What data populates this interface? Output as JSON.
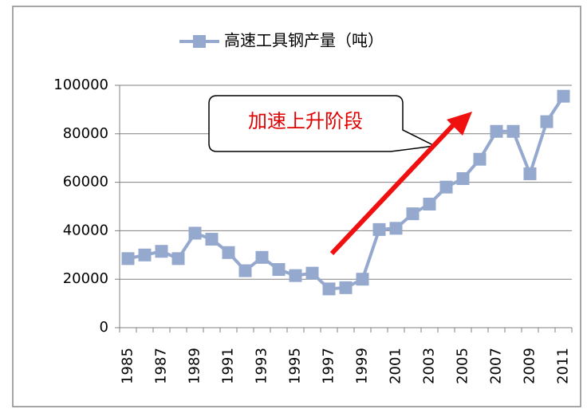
{
  "chart_data": {
    "type": "line",
    "categories": [
      "1985",
      null,
      "1987",
      null,
      "1989",
      null,
      "1991",
      null,
      "1993",
      null,
      "1995",
      null,
      "1997",
      null,
      "1999",
      null,
      "2001",
      null,
      "2003",
      null,
      "2005",
      null,
      "2007",
      null,
      "2009",
      null,
      "2011"
    ],
    "series": [
      {
        "name": "高速工具钢产量（吨）",
        "color": "#95a8cd",
        "values": [
          28500,
          30000,
          31500,
          28500,
          39000,
          36500,
          31000,
          23500,
          29000,
          24000,
          21500,
          22500,
          16000,
          16500,
          20000,
          40500,
          41000,
          47000,
          51000,
          58000,
          61500,
          69500,
          81000,
          81000,
          63500,
          85000,
          95500
        ]
      }
    ],
    "ylim": [
      0,
      100000
    ],
    "yticks": [
      0,
      20000,
      40000,
      60000,
      80000,
      100000
    ],
    "grid": true,
    "legend": "top",
    "annotation": "加速上升阶段"
  }
}
